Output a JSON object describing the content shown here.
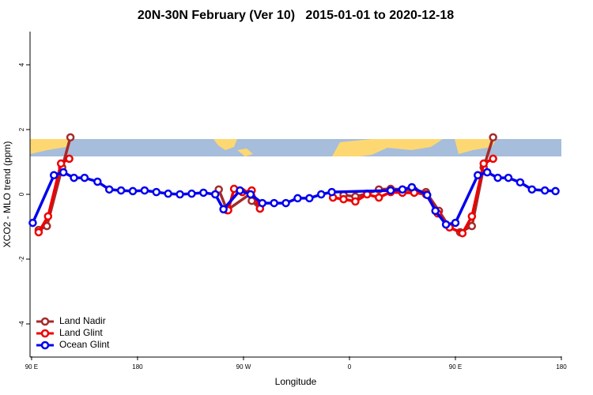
{
  "chart_data": {
    "type": "line",
    "title": "20N-30N February (Ver 10)   2015-01-01 to 2020-12-18",
    "x_label": "Longitude",
    "y_label": "XCO2 - MLO trend (ppm)",
    "xlim": [
      88.7,
      540
    ],
    "ylim": [
      -5,
      5
    ],
    "xticks": [
      {
        "value": 90,
        "label": "90 E"
      },
      180,
      {
        "value": 270,
        "label": "90 W"
      },
      {
        "value": 360,
        "label": "0"
      },
      {
        "value": 450,
        "label": "90 E"
      },
      {
        "value": 540,
        "label": "180"
      }
    ],
    "yticks": [
      -4,
      -2,
      0,
      2,
      4
    ],
    "legend": "bottom-left",
    "series": [
      {
        "name": "Land Nadir",
        "color": "#a52a2a",
        "x": [
          96,
          103,
          116,
          123,
          null,
          249,
          256,
          276,
          277,
          284,
          null,
          355,
          365,
          375,
          385,
          395,
          405,
          415,
          425,
          436,
          445,
          454,
          464,
          474,
          482
        ],
        "values": [
          -1.1,
          -0.98,
          0.83,
          1.76,
          null,
          0.15,
          -0.49,
          0.02,
          -0.2,
          -0.44,
          null,
          -0.02,
          -0.07,
          0.02,
          0.15,
          0.17,
          0.15,
          0.12,
          0.07,
          -0.51,
          -1.02,
          -1.17,
          -0.98,
          0.83,
          1.76
        ]
      },
      {
        "name": "Land Glint",
        "color": "#ee0000",
        "x": [
          96,
          104,
          115,
          122,
          null,
          257,
          262,
          269,
          277,
          284,
          null,
          346,
          355,
          365,
          375,
          385,
          395,
          405,
          415,
          425,
          435,
          445,
          456,
          464,
          474,
          482
        ],
        "values": [
          -1.17,
          -0.68,
          0.95,
          1.1,
          null,
          -0.49,
          0.17,
          0.07,
          0.12,
          -0.44,
          null,
          -0.1,
          -0.15,
          -0.22,
          0,
          -0.1,
          0.07,
          0.05,
          0.05,
          0,
          -0.59,
          -1.02,
          -1.2,
          -0.68,
          0.95,
          1.1
        ]
      },
      {
        "name": "Ocean Glint",
        "color": "#0000ee",
        "x": [
          91,
          109,
          117,
          126,
          135,
          146,
          156,
          166,
          176,
          186,
          196,
          206,
          216,
          226,
          236,
          246,
          253,
          267,
          276,
          286,
          296,
          306,
          316,
          326,
          336,
          345,
          395,
          405,
          413,
          426,
          433,
          442,
          450,
          469,
          477,
          486,
          495,
          505,
          515,
          526,
          535
        ],
        "values": [
          -0.88,
          0.59,
          0.68,
          0.51,
          0.51,
          0.39,
          0.15,
          0.12,
          0.1,
          0.12,
          0.07,
          0.02,
          0,
          0.02,
          0.05,
          0,
          -0.46,
          0.12,
          0,
          -0.27,
          -0.27,
          -0.27,
          -0.12,
          -0.12,
          0,
          0.07,
          0.12,
          0.15,
          0.22,
          -0.02,
          -0.51,
          -0.93,
          -0.88,
          0.59,
          0.68,
          0.51,
          0.51,
          0.37,
          0.15,
          0.12,
          0.1
        ]
      }
    ]
  }
}
